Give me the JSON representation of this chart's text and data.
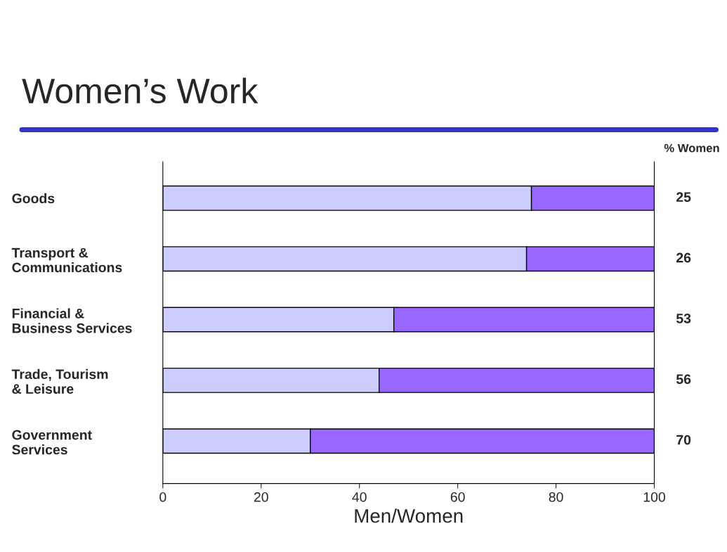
{
  "chart_data": {
    "type": "bar",
    "orientation": "horizontal",
    "stacked": true,
    "title": "Women’s Work",
    "xlabel": "Men/Women",
    "categories": [
      "Goods",
      "Transport &\nCommunications",
      "Financial &\nBusiness Services",
      "Trade, Tourism\n& Leisure",
      "Government\nServices"
    ],
    "series": [
      {
        "color": "#ccccff",
        "values": [
          75,
          74,
          47,
          44,
          30
        ]
      },
      {
        "color": "#9966ff",
        "values": [
          25,
          26,
          53,
          56,
          70
        ],
        "value_labels": [
          "25",
          "26",
          "53",
          "56",
          "70"
        ]
      }
    ],
    "xlim": [
      0,
      100
    ],
    "xticks": [
      0,
      20,
      40,
      60,
      80,
      100
    ],
    "grid": false,
    "legend": false,
    "annotations": [
      "% Women"
    ]
  }
}
